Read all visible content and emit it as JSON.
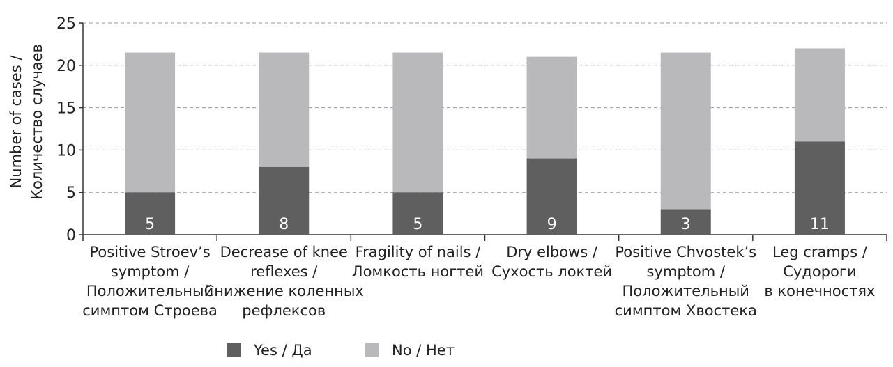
{
  "chart_data": {
    "type": "bar",
    "stacked": true,
    "categories": [
      [
        "Positive Stroev’s",
        "symptom /",
        "Положительный",
        "симптом Строева"
      ],
      [
        "Decrease of knee",
        "reflexes /",
        "Снижение коленных",
        "рефлексов"
      ],
      [
        "Fragility of nails /",
        "Ломкость ногтей"
      ],
      [
        "Dry elbows /",
        "Сухость локтей"
      ],
      [
        "Positive Chvostek’s",
        "symptom /",
        "Положительный",
        "симптом Хвостека"
      ],
      [
        "Leg cramps /",
        "Судороги",
        "в конечностях"
      ]
    ],
    "series": [
      {
        "name": "Yes / Да",
        "values": [
          5,
          8,
          5,
          9,
          3,
          11
        ],
        "color": "#5f5f5f"
      },
      {
        "name": "No / Нет",
        "values": [
          16.5,
          13.5,
          16.5,
          12,
          18.5,
          11
        ],
        "color": "#b9b9bb"
      }
    ],
    "data_labels": [
      "5",
      "8",
      "5",
      "9",
      "3",
      "11"
    ],
    "ylabel": [
      "Number of cases /",
      "Количество случаев"
    ],
    "ylim": [
      0,
      25
    ],
    "yticks": [
      0,
      5,
      10,
      15,
      20,
      25
    ],
    "grid": true,
    "legend_position": "bottom"
  }
}
